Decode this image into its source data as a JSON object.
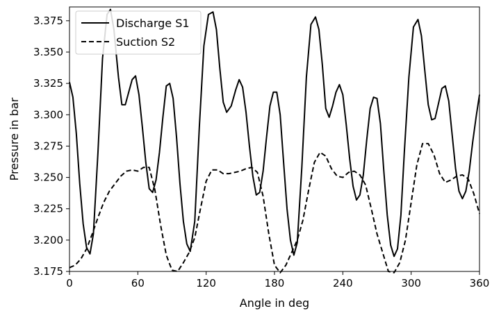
{
  "chart_data": {
    "type": "line",
    "xlabel": "Angle in deg",
    "ylabel": "Pressure in bar",
    "xlim": [
      0,
      360
    ],
    "ylim": [
      3.175,
      3.386
    ],
    "xticks": [
      0,
      60,
      120,
      180,
      240,
      300,
      360
    ],
    "yticks": [
      3.175,
      3.2,
      3.225,
      3.25,
      3.275,
      3.3,
      3.325,
      3.35,
      3.375
    ],
    "ytick_labels": [
      "3.175",
      "3.200",
      "3.225",
      "3.250",
      "3.275",
      "3.300",
      "3.325",
      "3.350",
      "3.375"
    ],
    "grid": false,
    "legend": "upper-left",
    "series": [
      {
        "name": "Discharge S1",
        "style": "solid",
        "color": "#000000",
        "x": [
          0,
          3,
          6,
          9,
          12,
          15,
          18,
          21,
          25,
          29,
          33,
          36,
          39,
          43,
          46,
          49,
          52,
          55,
          58,
          61,
          64,
          67,
          70,
          73,
          76,
          79,
          82,
          85,
          88,
          91,
          94,
          97,
          100,
          103,
          106,
          110,
          114,
          118,
          122,
          126,
          129,
          132,
          135,
          138,
          142,
          146,
          149,
          152,
          155,
          158,
          161,
          164,
          167,
          170,
          173,
          176,
          179,
          182,
          185,
          188,
          191,
          194,
          197,
          200,
          204,
          208,
          212,
          216,
          219,
          222,
          225,
          228,
          231,
          234,
          237,
          240,
          243,
          246,
          249,
          252,
          255,
          258,
          261,
          264,
          267,
          270,
          273,
          276,
          279,
          282,
          285,
          288,
          291,
          294,
          298,
          302,
          306,
          309,
          312,
          315,
          318,
          321,
          324,
          327,
          330,
          333,
          336,
          339,
          342,
          345,
          348,
          351,
          354,
          357,
          360
        ],
        "y": [
          3.326,
          3.314,
          3.285,
          3.245,
          3.213,
          3.194,
          3.189,
          3.205,
          3.27,
          3.345,
          3.38,
          3.384,
          3.368,
          3.33,
          3.308,
          3.308,
          3.318,
          3.328,
          3.331,
          3.316,
          3.29,
          3.262,
          3.241,
          3.238,
          3.248,
          3.27,
          3.298,
          3.323,
          3.325,
          3.313,
          3.282,
          3.245,
          3.215,
          3.197,
          3.191,
          3.215,
          3.29,
          3.355,
          3.38,
          3.382,
          3.368,
          3.337,
          3.31,
          3.302,
          3.307,
          3.32,
          3.328,
          3.322,
          3.302,
          3.275,
          3.251,
          3.236,
          3.238,
          3.255,
          3.282,
          3.307,
          3.318,
          3.318,
          3.3,
          3.262,
          3.225,
          3.2,
          3.188,
          3.198,
          3.258,
          3.33,
          3.372,
          3.378,
          3.368,
          3.34,
          3.305,
          3.298,
          3.307,
          3.318,
          3.324,
          3.316,
          3.292,
          3.265,
          3.243,
          3.232,
          3.236,
          3.252,
          3.28,
          3.305,
          3.314,
          3.313,
          3.293,
          3.255,
          3.22,
          3.196,
          3.187,
          3.193,
          3.22,
          3.27,
          3.33,
          3.37,
          3.376,
          3.363,
          3.335,
          3.308,
          3.296,
          3.297,
          3.309,
          3.321,
          3.323,
          3.311,
          3.284,
          3.257,
          3.239,
          3.233,
          3.239,
          3.255,
          3.278,
          3.298,
          3.316
        ]
      },
      {
        "name": "Suction S2",
        "style": "dashed",
        "color": "#000000",
        "x": [
          0,
          5,
          10,
          15,
          20,
          25,
          30,
          35,
          40,
          45,
          50,
          55,
          60,
          65,
          70,
          75,
          80,
          85,
          90,
          95,
          100,
          105,
          110,
          115,
          120,
          125,
          130,
          135,
          140,
          145,
          150,
          155,
          160,
          165,
          170,
          175,
          180,
          185,
          190,
          195,
          200,
          205,
          210,
          215,
          220,
          225,
          230,
          235,
          240,
          245,
          250,
          255,
          260,
          265,
          270,
          275,
          280,
          285,
          290,
          295,
          300,
          305,
          310,
          315,
          320,
          325,
          330,
          335,
          340,
          345,
          350,
          355,
          360
        ],
        "y": [
          3.178,
          3.18,
          3.185,
          3.193,
          3.205,
          3.218,
          3.23,
          3.239,
          3.245,
          3.251,
          3.255,
          3.256,
          3.255,
          3.258,
          3.258,
          3.24,
          3.212,
          3.188,
          3.176,
          3.175,
          3.182,
          3.19,
          3.202,
          3.225,
          3.247,
          3.256,
          3.256,
          3.253,
          3.253,
          3.254,
          3.255,
          3.257,
          3.258,
          3.254,
          3.235,
          3.205,
          3.18,
          3.174,
          3.18,
          3.19,
          3.2,
          3.216,
          3.24,
          3.262,
          3.27,
          3.267,
          3.257,
          3.251,
          3.25,
          3.254,
          3.255,
          3.252,
          3.244,
          3.225,
          3.205,
          3.19,
          3.175,
          3.174,
          3.182,
          3.2,
          3.23,
          3.26,
          3.277,
          3.277,
          3.268,
          3.253,
          3.246,
          3.248,
          3.251,
          3.252,
          3.249,
          3.237,
          3.221
        ]
      }
    ]
  }
}
